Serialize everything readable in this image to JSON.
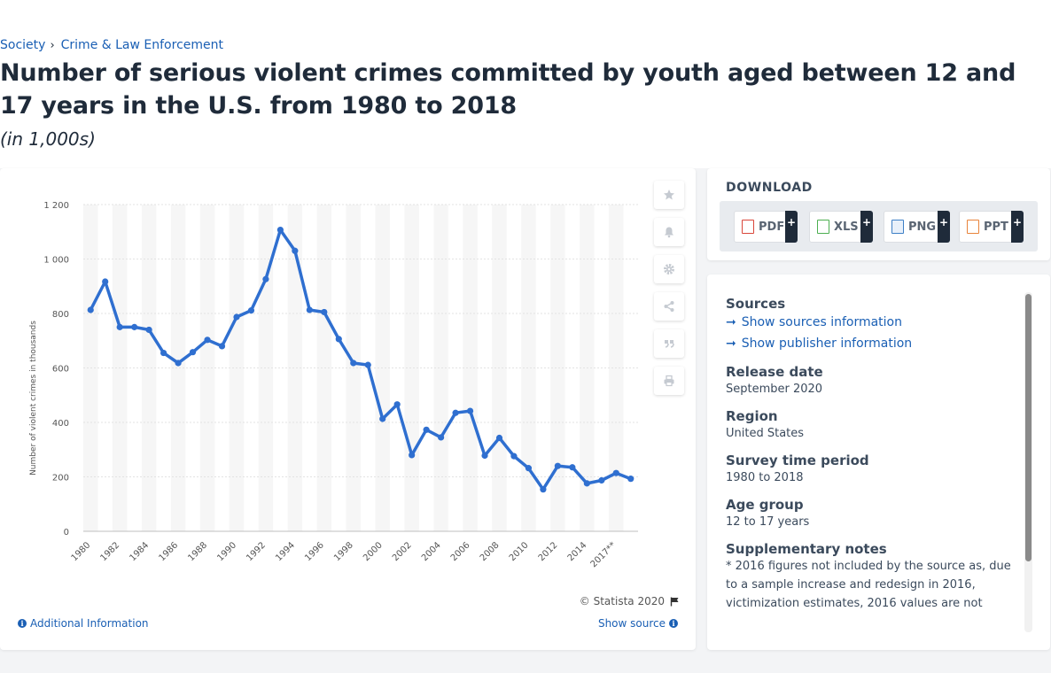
{
  "breadcrumb": {
    "items": [
      "Society",
      "Crime & Law Enforcement"
    ],
    "separator": "›"
  },
  "title": "Number of serious violent crimes committed by youth aged between 12 and 17 years in the U.S. from 1980 to 2018",
  "subtitle": "(in 1,000s)",
  "chart_footer": {
    "copyright": "© Statista 2020",
    "additional_info": "Additional Information",
    "show_source": "Show source"
  },
  "tools": [
    "star-icon",
    "bell-icon",
    "gear-icon",
    "share-icon",
    "quote-icon",
    "print-icon"
  ],
  "download": {
    "title": "DOWNLOAD",
    "buttons": [
      {
        "label": "PDF",
        "icon": "pdf-file-icon",
        "color": "#d9463a"
      },
      {
        "label": "XLS",
        "icon": "xls-file-icon",
        "color": "#4caf50"
      },
      {
        "label": "PNG",
        "icon": "png-file-icon",
        "color": "#3d7fc6"
      },
      {
        "label": "PPT",
        "icon": "ppt-file-icon",
        "color": "#e8833a"
      }
    ],
    "plus": "+"
  },
  "info": {
    "sources_head": "Sources",
    "show_sources": "Show sources information",
    "show_publisher": "Show publisher information",
    "release_head": "Release date",
    "release_val": "September 2020",
    "region_head": "Region",
    "region_val": "United States",
    "survey_head": "Survey time period",
    "survey_val": "1980 to 2018",
    "age_head": "Age group",
    "age_val": "12 to 17 years",
    "notes_head": "Supplementary notes",
    "notes_val": "* 2016 figures not included by the source as, due to a sample increase and redesign in 2016, victimization estimates, 2016 values are not"
  },
  "colors": {
    "line": "#2f6fd0",
    "accent": "#1a5fb4",
    "band": "#f6f6f6"
  },
  "chart_data": {
    "type": "line",
    "ylabel": "Number of violent crimes in thousands",
    "xlabel": "",
    "ylim": [
      0,
      1200
    ],
    "yticks": [
      0,
      200,
      400,
      600,
      800,
      1000,
      1200
    ],
    "ytick_labels": [
      "0",
      "200",
      "400",
      "600",
      "800",
      "1 000",
      "1 200"
    ],
    "categories": [
      "1980",
      "1981",
      "1982",
      "1983",
      "1984",
      "1985",
      "1986",
      "1987",
      "1988",
      "1989",
      "1990",
      "1991",
      "1992",
      "1993",
      "1994",
      "1995",
      "1996",
      "1997",
      "1998",
      "1999",
      "2000",
      "2001",
      "2002",
      "2003",
      "2004",
      "2005",
      "2006",
      "2007",
      "2008",
      "2009",
      "2010",
      "2011",
      "2012",
      "2013",
      "2014",
      "2015",
      "2017**",
      "2018"
    ],
    "tick_labels_shown": [
      "1980",
      "1982",
      "1984",
      "1986",
      "1988",
      "1990",
      "1992",
      "1994",
      "1996",
      "1998",
      "2000",
      "2002",
      "2004",
      "2006",
      "2008",
      "2010",
      "2012",
      "2014",
      "2017**"
    ],
    "series": [
      {
        "values": [
          813,
          917,
          750,
          750,
          740,
          655,
          618,
          658,
          703,
          680,
          787,
          811,
          926,
          1107,
          1030,
          813,
          805,
          706,
          618,
          611,
          413,
          466,
          280,
          373,
          345,
          435,
          442,
          278,
          343,
          276,
          232,
          154,
          240,
          235,
          176,
          187,
          214,
          193
        ]
      }
    ],
    "grid": true,
    "legend": "none"
  }
}
